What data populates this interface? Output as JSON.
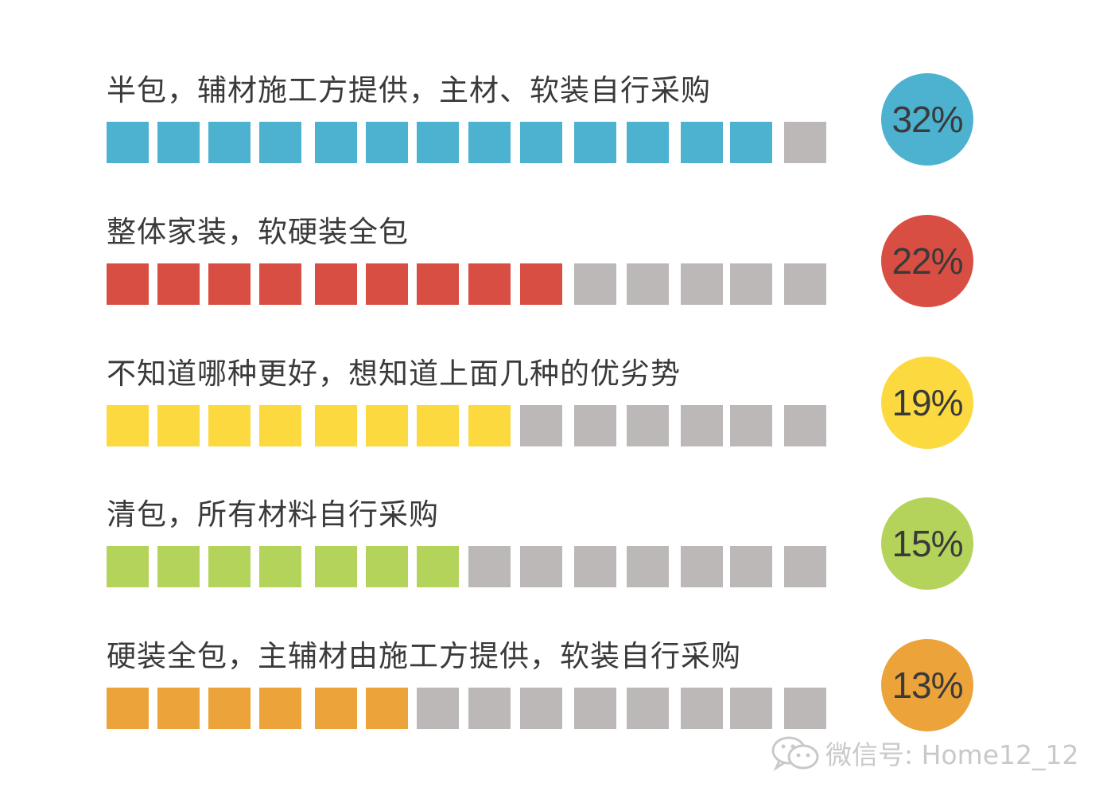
{
  "chart_data": {
    "type": "bar",
    "categories": [
      "半包，辅材施工方提供，主材、软装自行采购",
      "整体家装，软硬装全包",
      "不知道哪种更好，想知道上面几种的优劣势",
      "清包，所有材料自行采购",
      "硬装全包，主辅材由施工方提供，软装自行采购"
    ],
    "values": [
      32,
      22,
      19,
      15,
      13
    ],
    "value_labels": [
      "32%",
      "22%",
      "19%",
      "15%",
      "13%"
    ],
    "filled_squares": [
      13,
      9,
      8,
      7,
      6
    ],
    "total_squares": 14,
    "colors": [
      "#4db1d0",
      "#d94e43",
      "#fcd93f",
      "#b3d35a",
      "#eba33a"
    ],
    "empty_color": "#bdb8b8",
    "text_color": "#3a3a3a",
    "title": "",
    "xlabel": "",
    "ylabel": "",
    "grid": false,
    "legend": "none"
  },
  "watermark": {
    "text": "微信号: Home12_12",
    "icon": "wechat-icon",
    "color": "#c9c9c9"
  }
}
